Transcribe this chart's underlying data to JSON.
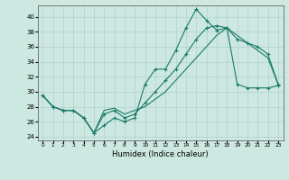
{
  "title": "",
  "xlabel": "Humidex (Indice chaleur)",
  "xlim": [
    -0.5,
    23.5
  ],
  "ylim": [
    23.5,
    41.5
  ],
  "yticks": [
    24,
    26,
    28,
    30,
    32,
    34,
    36,
    38,
    40
  ],
  "xticks": [
    0,
    1,
    2,
    3,
    4,
    5,
    6,
    7,
    8,
    9,
    10,
    11,
    12,
    13,
    14,
    15,
    16,
    17,
    18,
    19,
    20,
    21,
    22,
    23
  ],
  "bg_color": "#cce8e0",
  "grid_color": "#aacccc",
  "line_color": "#1a7a6a",
  "line1_x": [
    0,
    1,
    2,
    3,
    4,
    5,
    6,
    7,
    8,
    9,
    10,
    11,
    12,
    13,
    14,
    15,
    16,
    17,
    18,
    19,
    20,
    21,
    22,
    23
  ],
  "line1_y": [
    29.5,
    28.0,
    27.5,
    27.5,
    26.5,
    24.5,
    25.5,
    26.5,
    26.0,
    26.5,
    31.0,
    33.0,
    33.0,
    35.5,
    38.5,
    41.0,
    39.5,
    38.2,
    38.5,
    37.0,
    36.5,
    36.0,
    35.0,
    31.0
  ],
  "line2_x": [
    0,
    1,
    2,
    3,
    4,
    5,
    6,
    7,
    8,
    9,
    10,
    11,
    12,
    13,
    14,
    15,
    16,
    17,
    18,
    19,
    20,
    21,
    22,
    23
  ],
  "line2_y": [
    29.5,
    28.0,
    27.5,
    27.5,
    26.5,
    24.5,
    27.5,
    27.8,
    27.0,
    27.5,
    28.0,
    29.0,
    30.0,
    31.5,
    33.0,
    34.5,
    36.0,
    37.5,
    38.5,
    37.5,
    36.5,
    35.5,
    34.5,
    31.0
  ],
  "line3_x": [
    0,
    1,
    2,
    3,
    4,
    5,
    6,
    7,
    8,
    9,
    10,
    11,
    12,
    13,
    14,
    15,
    16,
    17,
    18,
    19,
    20,
    21,
    22,
    23
  ],
  "line3_y": [
    29.5,
    28.0,
    27.5,
    27.5,
    26.5,
    24.5,
    27.0,
    27.5,
    26.5,
    27.0,
    28.5,
    30.0,
    31.5,
    33.0,
    35.0,
    37.0,
    38.5,
    38.8,
    38.5,
    31.0,
    30.5,
    30.5,
    30.5,
    30.8
  ]
}
